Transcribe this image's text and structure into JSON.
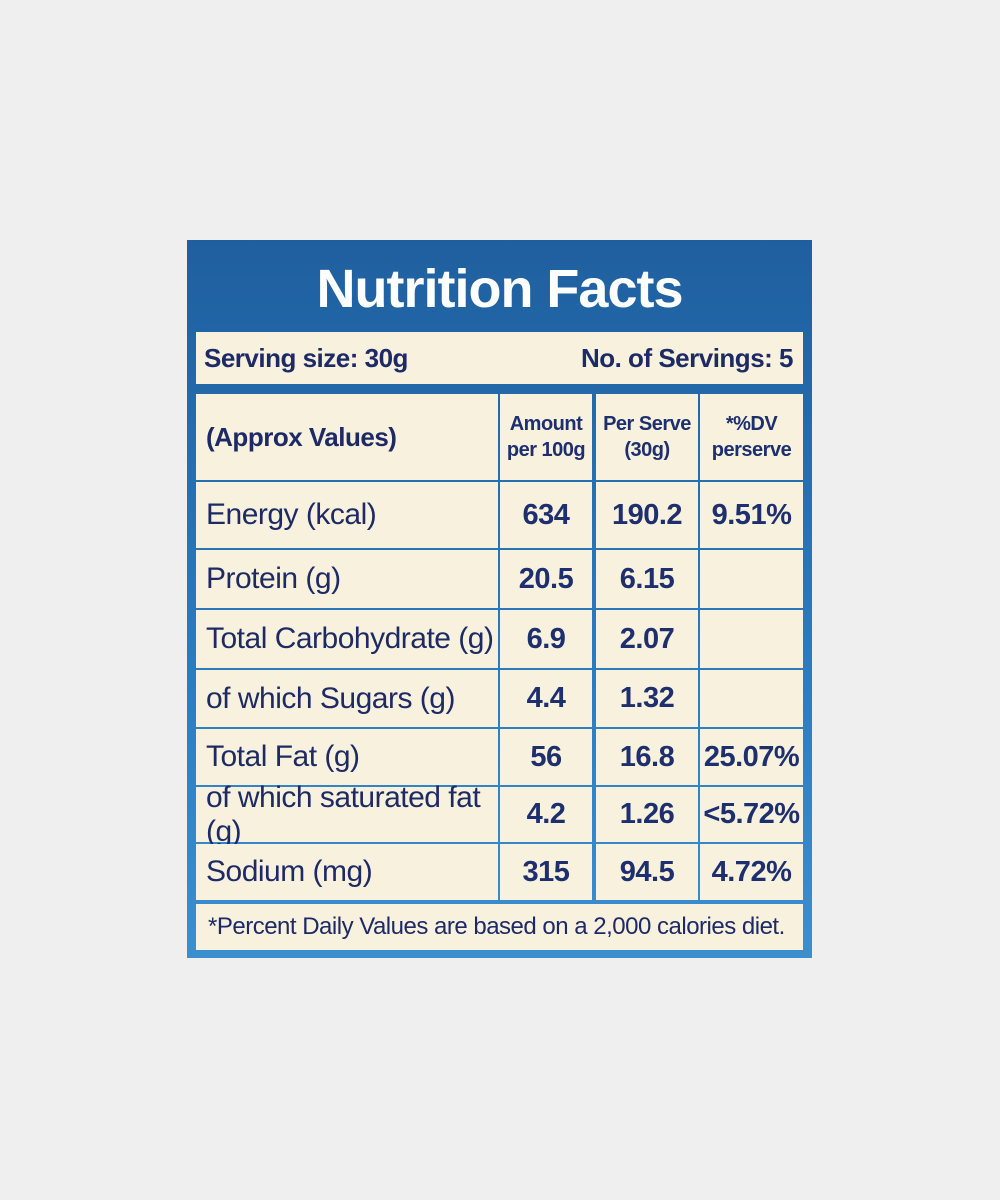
{
  "title": "Nutrition Facts",
  "serving": {
    "size": "Serving size: 30g",
    "count": "No. of Servings: 5"
  },
  "table": {
    "header": [
      "(Approx Values)",
      "Amount per 100g",
      "Per Serve (30g)",
      "*%DV perserve"
    ],
    "rows": [
      [
        "Energy (kcal)",
        "634",
        "190.2",
        "9.51%"
      ],
      [
        "Protein (g)",
        "20.5",
        "6.15",
        null
      ],
      [
        "Total Carbohydrate (g)",
        "6.9",
        "2.07",
        null
      ],
      [
        "of which Sugars (g)",
        "4.4",
        "1.32",
        null
      ],
      [
        "Total Fat (g)",
        "56",
        "16.8",
        "25.07%"
      ],
      [
        "of which saturated fat (g)",
        "4.2",
        "1.26",
        "<5.72%"
      ],
      [
        "Sodium (mg)",
        "315",
        "94.5",
        "4.72%"
      ]
    ]
  },
  "footnote": "*Percent Daily Values are based on a 2,000 calories diet."
}
